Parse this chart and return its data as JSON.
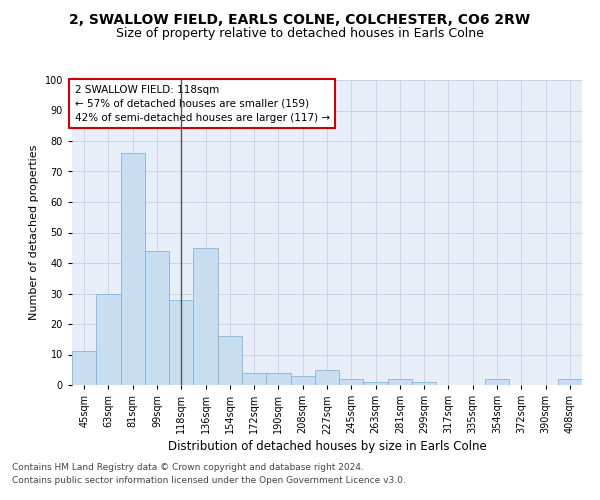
{
  "title1": "2, SWALLOW FIELD, EARLS COLNE, COLCHESTER, CO6 2RW",
  "title2": "Size of property relative to detached houses in Earls Colne",
  "xlabel": "Distribution of detached houses by size in Earls Colne",
  "ylabel": "Number of detached properties",
  "categories": [
    "45sqm",
    "63sqm",
    "81sqm",
    "99sqm",
    "118sqm",
    "136sqm",
    "154sqm",
    "172sqm",
    "190sqm",
    "208sqm",
    "227sqm",
    "245sqm",
    "263sqm",
    "281sqm",
    "299sqm",
    "317sqm",
    "335sqm",
    "354sqm",
    "372sqm",
    "390sqm",
    "408sqm"
  ],
  "values": [
    11,
    30,
    76,
    44,
    28,
    45,
    16,
    4,
    4,
    3,
    5,
    2,
    1,
    2,
    1,
    0,
    0,
    2,
    0,
    0,
    2
  ],
  "bar_color": "#c9ddf0",
  "bar_edge_color": "#8ab4d8",
  "highlight_bar_index": 4,
  "highlight_line_color": "#555555",
  "annotation_text": "2 SWALLOW FIELD: 118sqm\n← 57% of detached houses are smaller (159)\n42% of semi-detached houses are larger (117) →",
  "annotation_box_color": "#ffffff",
  "annotation_box_edge_color": "#cc0000",
  "annotation_fontsize": 7.5,
  "ylim": [
    0,
    100
  ],
  "yticks": [
    0,
    10,
    20,
    30,
    40,
    50,
    60,
    70,
    80,
    90,
    100
  ],
  "grid_color": "#ccd5e8",
  "background_color": "#e8eef8",
  "footer1": "Contains HM Land Registry data © Crown copyright and database right 2024.",
  "footer2": "Contains public sector information licensed under the Open Government Licence v3.0.",
  "title1_fontsize": 10,
  "title2_fontsize": 9,
  "xlabel_fontsize": 8.5,
  "ylabel_fontsize": 8,
  "tick_fontsize": 7,
  "footer_fontsize": 6.5
}
